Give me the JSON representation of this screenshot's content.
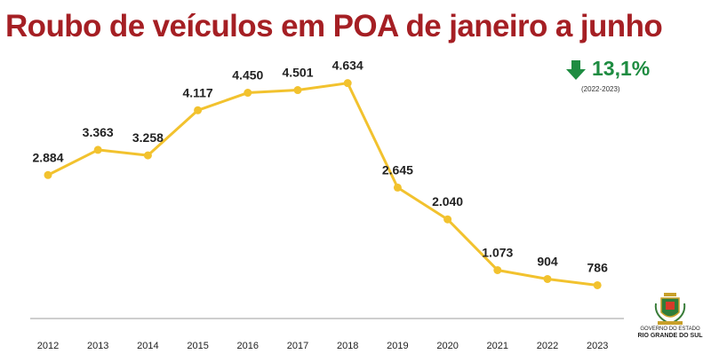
{
  "header": {
    "title": "Roubo de veículos em POA de janeiro a junho"
  },
  "change_indicator": {
    "icon": "arrow-down-icon",
    "value": "13,1%",
    "period": "(2022-2023)",
    "color": "#1e8c41"
  },
  "logo": {
    "line1": "GOVERNO DO ESTADO",
    "line2": "RIO GRANDE DO SUL"
  },
  "colors": {
    "title": "#a51f24",
    "line": "#f2c22e",
    "axis": "#bdbdbd"
  },
  "chart_data": {
    "type": "line",
    "title": "Roubo de veículos em POA de janeiro a junho",
    "xlabel": "",
    "ylabel": "",
    "categories": [
      "2012",
      "2013",
      "2014",
      "2015",
      "2016",
      "2017",
      "2018",
      "2019",
      "2020",
      "2021",
      "2022",
      "2023"
    ],
    "series": [
      {
        "values": [
          2884,
          3363,
          3258,
          4117,
          4450,
          4501,
          4634,
          2645,
          2040,
          1073,
          904,
          786
        ],
        "labels": [
          "2.884",
          "3.363",
          "3.258",
          "4.117",
          "4.450",
          "4.501",
          "4.634",
          "2.645",
          "2.040",
          "1.073",
          "904",
          "786"
        ]
      }
    ],
    "ylim": [
      0,
      5000
    ],
    "grid": false,
    "legend": "none"
  }
}
